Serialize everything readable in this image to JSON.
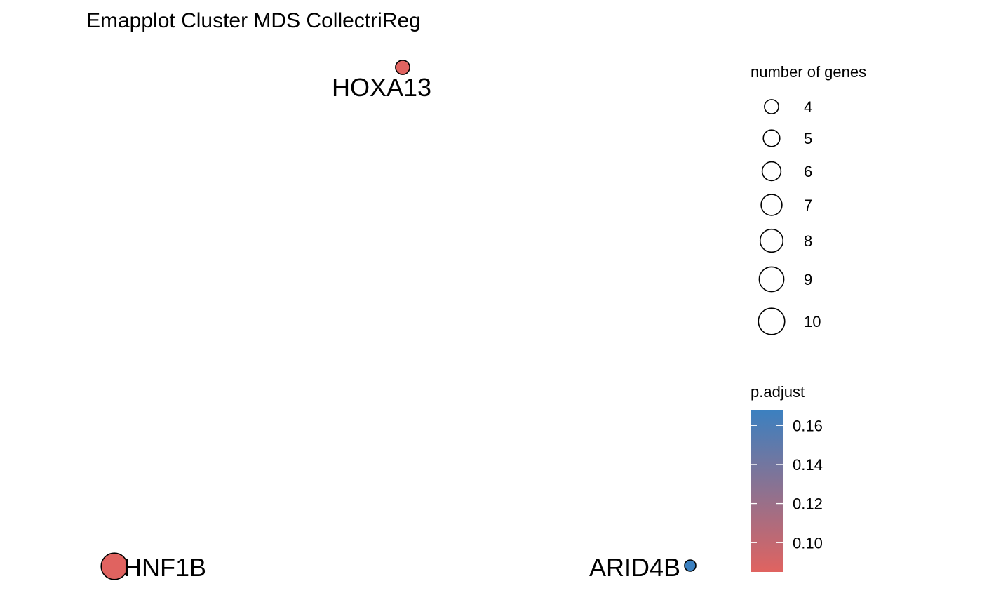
{
  "chart_data": {
    "type": "scatter",
    "title": "Emapplot Cluster MDS CollectriReg",
    "xlabel": "",
    "ylabel": "",
    "grid": false,
    "axes": false,
    "points": [
      {
        "label": "HOXA13",
        "size": 4,
        "p_adjust": 0.085
      },
      {
        "label": "HNF1B",
        "size": 10,
        "p_adjust": 0.085
      },
      {
        "label": "ARID4B",
        "size": 3,
        "p_adjust": 0.168
      }
    ],
    "size_legend": {
      "title": "number of genes",
      "values": [
        4,
        5,
        6,
        7,
        8,
        9,
        10
      ],
      "labels": [
        "4",
        "5",
        "6",
        "7",
        "8",
        "9",
        "10"
      ]
    },
    "color_legend": {
      "title": "p.adjust",
      "min": 0.085,
      "max": 0.168,
      "ticks": [
        0.1,
        0.12,
        0.14,
        0.16
      ],
      "tick_labels": [
        "0.10",
        "0.12",
        "0.14",
        "0.16"
      ],
      "low_color": "#E06360",
      "high_color": "#3B80C0"
    },
    "legend_position": "right"
  }
}
